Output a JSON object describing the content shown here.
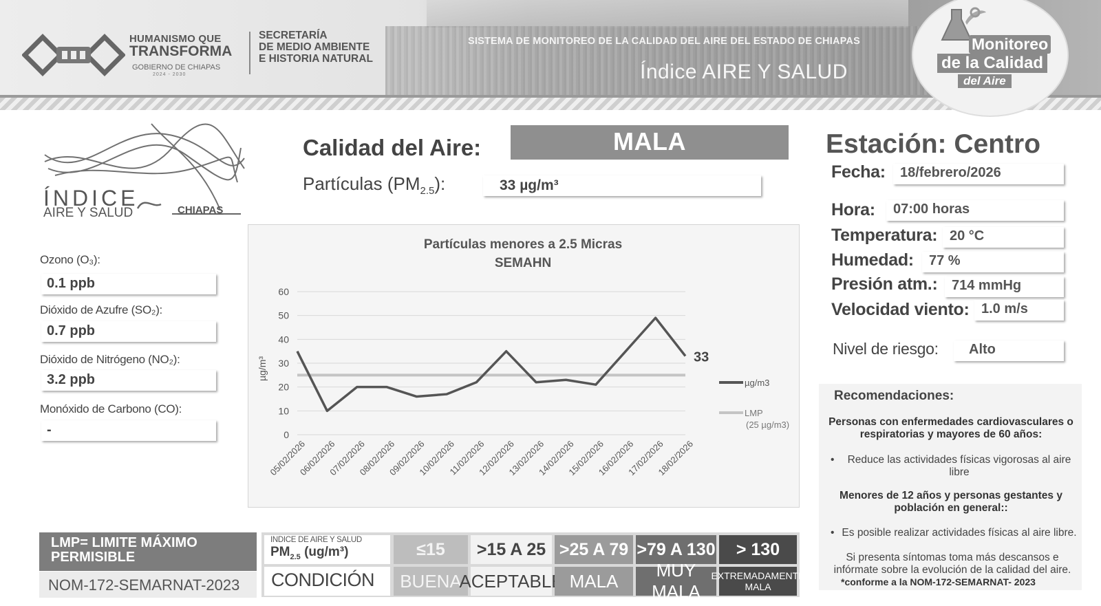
{
  "header": {
    "gov_line1": "HUMANISMO QUE",
    "gov_line2": "TRANSFORMA",
    "gov_line3": "GOBIERNO DE CHIAPAS",
    "gov_years": "2024 - 2030",
    "secretaria_line1": "SECRETARÍA",
    "secretaria_line2": "DE MEDIO AMBIENTE",
    "secretaria_line3": "E HISTORIA NATURAL",
    "sistema": "SISTEMA DE MONITOREO DE LA CALIDAD DEL AIRE DEL ESTADO DE CHIAPAS",
    "indice_title": "Índice AIRE Y SALUD",
    "badge_line1": "Monitoreo",
    "badge_line2": "de la Calidad",
    "badge_line3": "del Aire"
  },
  "left": {
    "logo_big": "ÍNDICE",
    "logo_small": "AIRE Y SALUD",
    "logo_region": "CHIAPAS",
    "pollutants": [
      {
        "label": "Ozono (O₃):",
        "value": "0.1 ppb"
      },
      {
        "label": "Dióxido de Azufre  (SO₂):",
        "value": "0.7 ppb"
      },
      {
        "label": "Dióxido de Nitrógeno (NO₂):",
        "value": "3.2 ppb"
      },
      {
        "label": "Monóxido de Carbono (CO):",
        "value": "-"
      }
    ]
  },
  "center": {
    "calidad_label": "Calidad del Aire:",
    "calidad_value": "MALA",
    "particulas_label": "Partículas (PM",
    "particulas_sub": "2.5",
    "particulas_suffix": "):",
    "particulas_value": "33 µg/m³"
  },
  "chart_data": {
    "type": "line",
    "title": "Partículas  menores a 2.5 Micras",
    "subtitle": "SEMAHN",
    "ylabel": "µg/m³",
    "ylim": [
      0,
      60
    ],
    "yticks": [
      0,
      10,
      20,
      30,
      40,
      50,
      60
    ],
    "categories": [
      "05/02/2026",
      "06/02/2026",
      "07/02/2026",
      "08/02/2026",
      "09/02/2026",
      "10/02/2026",
      "11/02/2026",
      "12/02/2026",
      "13/02/2026",
      "14/02/2026",
      "15/02/2026",
      "16/02/2026",
      "17/02/2026",
      "18/02/2026"
    ],
    "series": [
      {
        "name": "µg/m3",
        "values": [
          35,
          10,
          20,
          20,
          16,
          17,
          22,
          35,
          22,
          23,
          21,
          35,
          49,
          33
        ],
        "color": "#555555"
      },
      {
        "name": "LMP",
        "note": "(25 µg/m3)",
        "values": [
          25,
          25,
          25,
          25,
          25,
          25,
          25,
          25,
          25,
          25,
          25,
          25,
          25,
          25
        ],
        "color": "#c4c4c4"
      }
    ],
    "last_value_label": "33",
    "grid": true,
    "legend": "right"
  },
  "right": {
    "estacion": "Estación: Centro",
    "fecha_label": "Fecha:",
    "fecha_value": "18/febrero/2026",
    "hora_label": "Hora:",
    "hora_value": "07:00 horas",
    "temp_label": "Temperatura:",
    "temp_value": "20 °C",
    "hum_label": "Humedad:",
    "hum_value": "77 %",
    "pres_label": "Presión atm.:",
    "pres_value": "714 mmHg",
    "viento_label": "Velocidad viento:",
    "viento_value": "1.0 m/s",
    "riesgo_label": "Nivel de riesgo:",
    "riesgo_value": "Alto",
    "recs_title": "Recomendaciones:",
    "group1": "Personas con enfermedades cardiovasculares o respiratorias y mayores de 60 años:",
    "bullet1": "Reduce las actividades físicas vigorosas al aire libre",
    "group2": "Menores de 12 años y personas gestantes y población en general::",
    "bullet2": "Es posible realizar actividades físicas al aire libre.",
    "note": "Si presenta síntomas toma más descansos e infórmate sobre la evolución de la calidad del aire.",
    "footnote": "*conforme a la NOM-172-SEMARNAT- 2023"
  },
  "bottom": {
    "lmp_line1": "LMP= LIMITE MÁXIMO",
    "lmp_line2": "PERMISIBLE",
    "nom": "NOM-172-SEMARNAT-2023",
    "scale_head1": "INDICE DE AIRE Y SALUD",
    "scale_head2": "PM",
    "scale_head2_sub": "2.5",
    "scale_head2_suffix": " (ug/m³)",
    "condicion": "CONDICIÓN",
    "scale": [
      {
        "range": "≤15",
        "label": "BUENA",
        "color": "#bdbdbd",
        "text": "#f4f4f4"
      },
      {
        "range": ">15 A 25",
        "label": "ACEPTABLE",
        "color": "#f2f2f2",
        "text": "#444444"
      },
      {
        "range": ">25 A 79",
        "label": "MALA",
        "color": "#9b9b9b",
        "text": "#ffffff"
      },
      {
        "range": ">79 A 130",
        "label": "MUY MALA",
        "color": "#6f6f6f",
        "text": "#ffffff"
      },
      {
        "range": "> 130",
        "label": "EXTREMADAMENTE MALA",
        "color": "#4a4a4a",
        "text": "#ffffff"
      }
    ]
  }
}
